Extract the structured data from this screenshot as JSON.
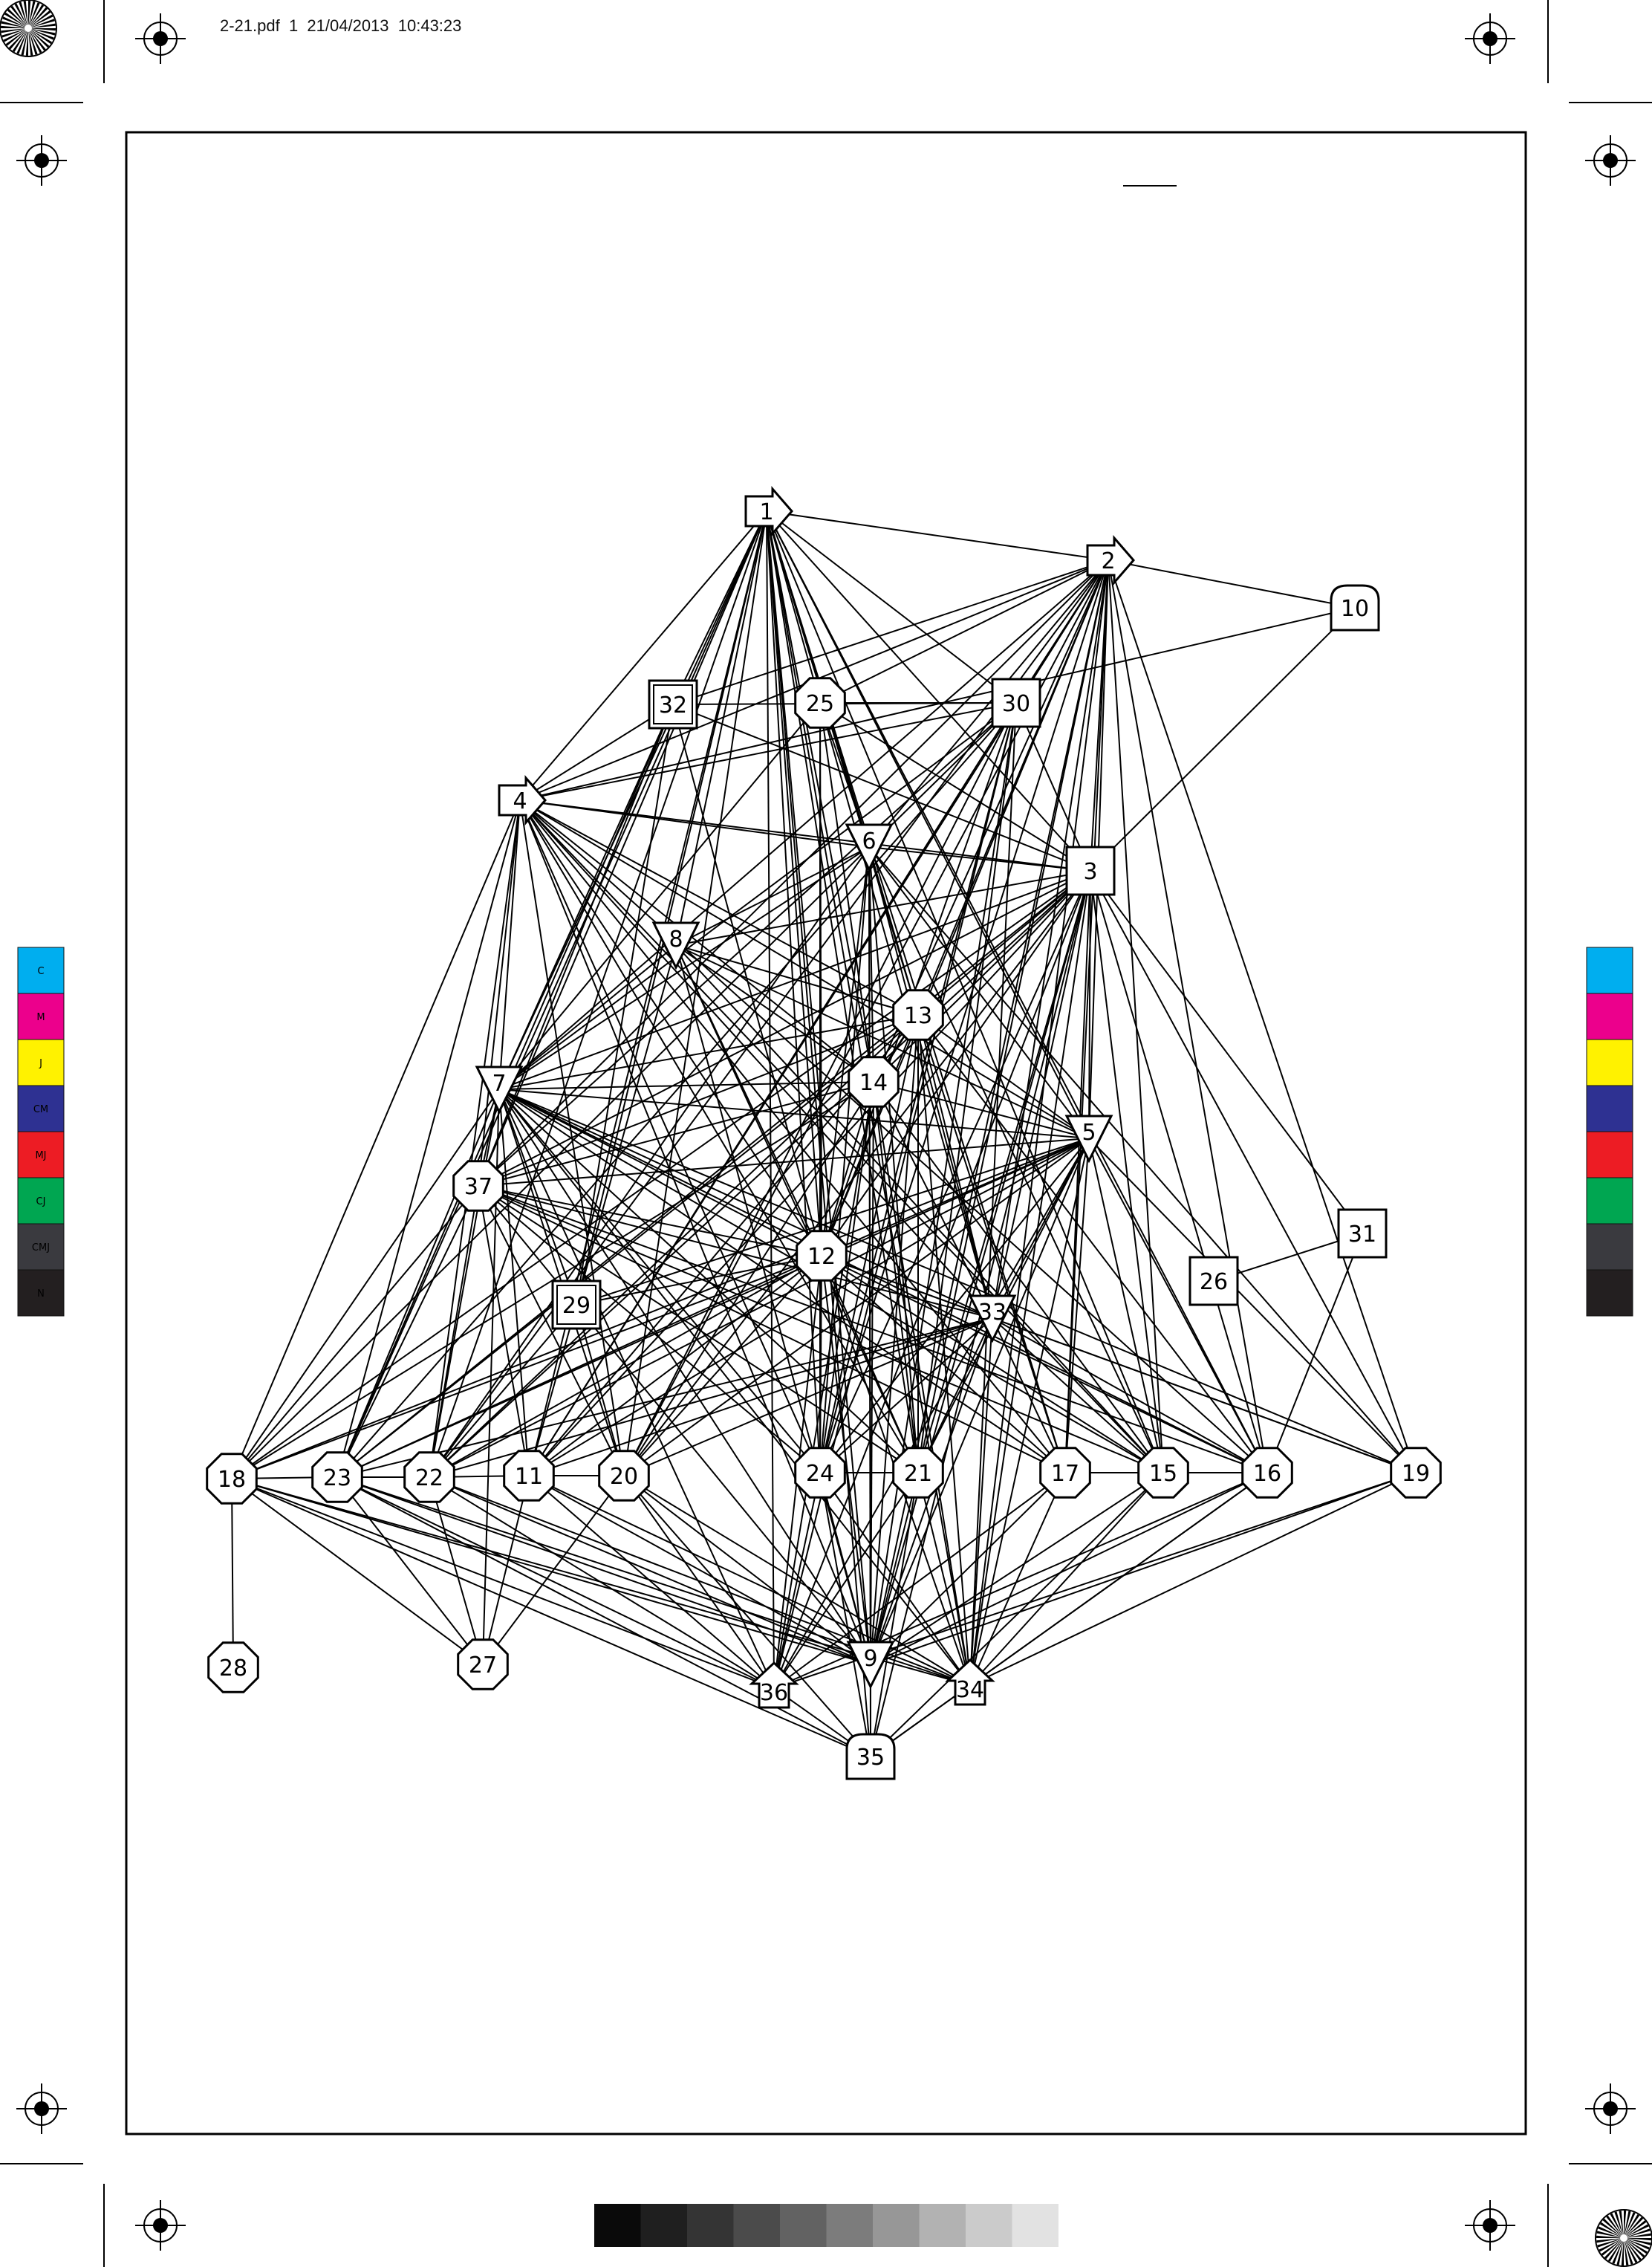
{
  "header": {
    "file_info": "2-21.pdf  1  21/04/2013  10:43:23"
  },
  "color_bar": {
    "patches": [
      {
        "label": "C",
        "color": "#00aeef"
      },
      {
        "label": "M",
        "color": "#ec008c"
      },
      {
        "label": "J",
        "color": "#fff200"
      },
      {
        "label": "CM",
        "color": "#2e3192"
      },
      {
        "label": "MJ",
        "color": "#ed1c24"
      },
      {
        "label": "CJ",
        "color": "#00a651"
      },
      {
        "label": "CMJ",
        "color": "#3a3a3f"
      },
      {
        "label": "N",
        "color": "#231f20"
      }
    ]
  },
  "gray_scale": [
    "#0a0a0a",
    "#1f1f1f",
    "#343434",
    "#4b4b4b",
    "#626262",
    "#7c7c7c",
    "#979797",
    "#b2b2b2",
    "#cbcbcb",
    "#e2e2e2"
  ],
  "graph": {
    "nodes": [
      {
        "id": "1",
        "shape": "arrow-right"
      },
      {
        "id": "2",
        "shape": "arrow-right"
      },
      {
        "id": "3",
        "shape": "square"
      },
      {
        "id": "4",
        "shape": "arrow-right"
      },
      {
        "id": "5",
        "shape": "triangle-down"
      },
      {
        "id": "6",
        "shape": "triangle-down"
      },
      {
        "id": "7",
        "shape": "triangle-down"
      },
      {
        "id": "8",
        "shape": "triangle-down"
      },
      {
        "id": "9",
        "shape": "triangle-down"
      },
      {
        "id": "10",
        "shape": "house"
      },
      {
        "id": "11",
        "shape": "octagon"
      },
      {
        "id": "12",
        "shape": "octagon"
      },
      {
        "id": "13",
        "shape": "octagon"
      },
      {
        "id": "14",
        "shape": "octagon"
      },
      {
        "id": "15",
        "shape": "octagon"
      },
      {
        "id": "16",
        "shape": "octagon"
      },
      {
        "id": "17",
        "shape": "octagon"
      },
      {
        "id": "18",
        "shape": "octagon"
      },
      {
        "id": "19",
        "shape": "octagon"
      },
      {
        "id": "20",
        "shape": "octagon"
      },
      {
        "id": "21",
        "shape": "octagon"
      },
      {
        "id": "22",
        "shape": "octagon"
      },
      {
        "id": "23",
        "shape": "octagon"
      },
      {
        "id": "24",
        "shape": "octagon"
      },
      {
        "id": "25",
        "shape": "octagon"
      },
      {
        "id": "26",
        "shape": "square"
      },
      {
        "id": "27",
        "shape": "octagon"
      },
      {
        "id": "28",
        "shape": "octagon"
      },
      {
        "id": "29",
        "shape": "double-square"
      },
      {
        "id": "30",
        "shape": "square"
      },
      {
        "id": "31",
        "shape": "square"
      },
      {
        "id": "32",
        "shape": "double-square"
      },
      {
        "id": "33",
        "shape": "triangle-down"
      },
      {
        "id": "34",
        "shape": "arrow-up"
      },
      {
        "id": "35",
        "shape": "house"
      },
      {
        "id": "36",
        "shape": "arrow-up"
      },
      {
        "id": "37",
        "shape": "octagon"
      }
    ],
    "edges": [
      [
        "1",
        "2"
      ],
      [
        "1",
        "4"
      ],
      [
        "1",
        "30"
      ],
      [
        "1",
        "3"
      ],
      [
        "1",
        "32"
      ],
      [
        "1",
        "6"
      ],
      [
        "1",
        "8"
      ],
      [
        "1",
        "7"
      ],
      [
        "1",
        "13"
      ],
      [
        "1",
        "14"
      ],
      [
        "1",
        "5"
      ],
      [
        "1",
        "37"
      ],
      [
        "1",
        "12"
      ],
      [
        "1",
        "29"
      ],
      [
        "1",
        "33"
      ],
      [
        "1",
        "11"
      ],
      [
        "1",
        "20"
      ],
      [
        "1",
        "24"
      ],
      [
        "1",
        "21"
      ],
      [
        "1",
        "17"
      ],
      [
        "1",
        "15"
      ],
      [
        "1",
        "16"
      ],
      [
        "1",
        "22"
      ],
      [
        "1",
        "23"
      ],
      [
        "1",
        "9"
      ],
      [
        "1",
        "36"
      ],
      [
        "1",
        "34"
      ],
      [
        "1",
        "35"
      ],
      [
        "2",
        "10"
      ],
      [
        "2",
        "32"
      ],
      [
        "2",
        "25"
      ],
      [
        "2",
        "30"
      ],
      [
        "2",
        "3"
      ],
      [
        "2",
        "4"
      ],
      [
        "2",
        "6"
      ],
      [
        "2",
        "7"
      ],
      [
        "2",
        "13"
      ],
      [
        "2",
        "5"
      ],
      [
        "2",
        "12"
      ],
      [
        "2",
        "33"
      ],
      [
        "2",
        "24"
      ],
      [
        "2",
        "21"
      ],
      [
        "2",
        "17"
      ],
      [
        "2",
        "15"
      ],
      [
        "2",
        "16"
      ],
      [
        "2",
        "19"
      ],
      [
        "2",
        "9"
      ],
      [
        "2",
        "34"
      ],
      [
        "2",
        "20"
      ],
      [
        "2",
        "11"
      ],
      [
        "2",
        "22"
      ],
      [
        "2",
        "37"
      ],
      [
        "2",
        "14"
      ],
      [
        "10",
        "4"
      ],
      [
        "10",
        "3"
      ],
      [
        "32",
        "30"
      ],
      [
        "32",
        "4"
      ],
      [
        "32",
        "3"
      ],
      [
        "32",
        "7"
      ],
      [
        "32",
        "37"
      ],
      [
        "32",
        "23"
      ],
      [
        "32",
        "29"
      ],
      [
        "32",
        "12"
      ],
      [
        "25",
        "30"
      ],
      [
        "25",
        "6"
      ],
      [
        "25",
        "3"
      ],
      [
        "25",
        "12"
      ],
      [
        "25",
        "7"
      ],
      [
        "25",
        "14"
      ],
      [
        "25",
        "24"
      ],
      [
        "30",
        "4"
      ],
      [
        "30",
        "3"
      ],
      [
        "30",
        "6"
      ],
      [
        "30",
        "7"
      ],
      [
        "30",
        "37"
      ],
      [
        "30",
        "12"
      ],
      [
        "30",
        "24"
      ],
      [
        "30",
        "21"
      ],
      [
        "30",
        "11"
      ],
      [
        "30",
        "20"
      ],
      [
        "30",
        "9"
      ],
      [
        "30",
        "36"
      ],
      [
        "30",
        "34"
      ],
      [
        "30",
        "23"
      ],
      [
        "4",
        "6"
      ],
      [
        "4",
        "3"
      ],
      [
        "4",
        "7"
      ],
      [
        "4",
        "37"
      ],
      [
        "4",
        "13"
      ],
      [
        "4",
        "14"
      ],
      [
        "4",
        "5"
      ],
      [
        "4",
        "12"
      ],
      [
        "4",
        "33"
      ],
      [
        "4",
        "18"
      ],
      [
        "4",
        "23"
      ],
      [
        "4",
        "22"
      ],
      [
        "4",
        "24"
      ],
      [
        "4",
        "21"
      ],
      [
        "4",
        "17"
      ],
      [
        "4",
        "15"
      ],
      [
        "4",
        "9"
      ],
      [
        "4",
        "16"
      ],
      [
        "4",
        "20"
      ],
      [
        "6",
        "3"
      ],
      [
        "6",
        "8"
      ],
      [
        "6",
        "7"
      ],
      [
        "6",
        "13"
      ],
      [
        "6",
        "14"
      ],
      [
        "6",
        "5"
      ],
      [
        "6",
        "12"
      ],
      [
        "6",
        "33"
      ],
      [
        "6",
        "24"
      ],
      [
        "6",
        "21"
      ],
      [
        "6",
        "15"
      ],
      [
        "6",
        "9"
      ],
      [
        "6",
        "19"
      ],
      [
        "6",
        "18"
      ],
      [
        "6",
        "22"
      ],
      [
        "6",
        "35"
      ],
      [
        "3",
        "8"
      ],
      [
        "3",
        "7"
      ],
      [
        "3",
        "13"
      ],
      [
        "3",
        "14"
      ],
      [
        "3",
        "5"
      ],
      [
        "3",
        "12"
      ],
      [
        "3",
        "37"
      ],
      [
        "3",
        "33"
      ],
      [
        "3",
        "24"
      ],
      [
        "3",
        "21"
      ],
      [
        "3",
        "17"
      ],
      [
        "3",
        "15"
      ],
      [
        "3",
        "16"
      ],
      [
        "3",
        "19"
      ],
      [
        "3",
        "9"
      ],
      [
        "3",
        "34"
      ],
      [
        "3",
        "36"
      ],
      [
        "3",
        "11"
      ],
      [
        "3",
        "20"
      ],
      [
        "3",
        "22"
      ],
      [
        "3",
        "23"
      ],
      [
        "3",
        "18"
      ],
      [
        "3",
        "35"
      ],
      [
        "8",
        "7"
      ],
      [
        "8",
        "13"
      ],
      [
        "8",
        "14"
      ],
      [
        "8",
        "5"
      ],
      [
        "8",
        "12"
      ],
      [
        "8",
        "29"
      ],
      [
        "8",
        "15"
      ],
      [
        "8",
        "9"
      ],
      [
        "8",
        "21"
      ],
      [
        "13",
        "7"
      ],
      [
        "13",
        "14"
      ],
      [
        "13",
        "5"
      ],
      [
        "13",
        "12"
      ],
      [
        "13",
        "37"
      ],
      [
        "13",
        "33"
      ],
      [
        "13",
        "24"
      ],
      [
        "13",
        "21"
      ],
      [
        "13",
        "17"
      ],
      [
        "13",
        "9"
      ],
      [
        "13",
        "34"
      ],
      [
        "13",
        "22"
      ],
      [
        "13",
        "11"
      ],
      [
        "13",
        "20"
      ],
      [
        "13",
        "23"
      ],
      [
        "13",
        "16"
      ],
      [
        "14",
        "7"
      ],
      [
        "14",
        "5"
      ],
      [
        "14",
        "12"
      ],
      [
        "14",
        "37"
      ],
      [
        "14",
        "33"
      ],
      [
        "14",
        "21"
      ],
      [
        "14",
        "24"
      ],
      [
        "14",
        "9"
      ],
      [
        "14",
        "34"
      ],
      [
        "14",
        "15"
      ],
      [
        "14",
        "18"
      ],
      [
        "14",
        "36"
      ],
      [
        "7",
        "5"
      ],
      [
        "7",
        "12"
      ],
      [
        "7",
        "37"
      ],
      [
        "7",
        "29"
      ],
      [
        "7",
        "33"
      ],
      [
        "7",
        "18"
      ],
      [
        "7",
        "23"
      ],
      [
        "7",
        "22"
      ],
      [
        "7",
        "11"
      ],
      [
        "7",
        "20"
      ],
      [
        "7",
        "24"
      ],
      [
        "7",
        "21"
      ],
      [
        "7",
        "17"
      ],
      [
        "7",
        "15"
      ],
      [
        "7",
        "16"
      ],
      [
        "7",
        "19"
      ],
      [
        "7",
        "9"
      ],
      [
        "7",
        "36"
      ],
      [
        "7",
        "34"
      ],
      [
        "7",
        "27"
      ],
      [
        "5",
        "37"
      ],
      [
        "5",
        "12"
      ],
      [
        "5",
        "29"
      ],
      [
        "5",
        "33"
      ],
      [
        "5",
        "18"
      ],
      [
        "5",
        "23"
      ],
      [
        "5",
        "22"
      ],
      [
        "5",
        "11"
      ],
      [
        "5",
        "20"
      ],
      [
        "5",
        "24"
      ],
      [
        "5",
        "21"
      ],
      [
        "5",
        "17"
      ],
      [
        "5",
        "15"
      ],
      [
        "5",
        "16"
      ],
      [
        "5",
        "19"
      ],
      [
        "5",
        "9"
      ],
      [
        "5",
        "34"
      ],
      [
        "5",
        "36"
      ],
      [
        "37",
        "12"
      ],
      [
        "37",
        "33"
      ],
      [
        "37",
        "23"
      ],
      [
        "37",
        "22"
      ],
      [
        "37",
        "11"
      ],
      [
        "37",
        "20"
      ],
      [
        "37",
        "24"
      ],
      [
        "37",
        "21"
      ],
      [
        "37",
        "17"
      ],
      [
        "37",
        "15"
      ],
      [
        "37",
        "16"
      ],
      [
        "37",
        "9"
      ],
      [
        "37",
        "18"
      ],
      [
        "12",
        "29"
      ],
      [
        "12",
        "33"
      ],
      [
        "12",
        "18"
      ],
      [
        "12",
        "23"
      ],
      [
        "12",
        "22"
      ],
      [
        "12",
        "11"
      ],
      [
        "12",
        "20"
      ],
      [
        "12",
        "24"
      ],
      [
        "12",
        "21"
      ],
      [
        "12",
        "17"
      ],
      [
        "12",
        "15"
      ],
      [
        "12",
        "16"
      ],
      [
        "12",
        "19"
      ],
      [
        "12",
        "9"
      ],
      [
        "12",
        "34"
      ],
      [
        "12",
        "36"
      ],
      [
        "29",
        "11"
      ],
      [
        "29",
        "20"
      ],
      [
        "29",
        "22"
      ],
      [
        "33",
        "22"
      ],
      [
        "33",
        "11"
      ],
      [
        "33",
        "20"
      ],
      [
        "33",
        "24"
      ],
      [
        "33",
        "21"
      ],
      [
        "33",
        "17"
      ],
      [
        "33",
        "15"
      ],
      [
        "33",
        "16"
      ],
      [
        "33",
        "19"
      ],
      [
        "33",
        "9"
      ],
      [
        "33",
        "34"
      ],
      [
        "33",
        "23"
      ],
      [
        "31",
        "26"
      ],
      [
        "31",
        "16"
      ],
      [
        "31",
        "3"
      ],
      [
        "18",
        "23"
      ],
      [
        "18",
        "28"
      ],
      [
        "18",
        "27"
      ],
      [
        "18",
        "36"
      ],
      [
        "18",
        "9"
      ],
      [
        "18",
        "35"
      ],
      [
        "18",
        "34"
      ],
      [
        "23",
        "22"
      ],
      [
        "23",
        "27"
      ],
      [
        "23",
        "36"
      ],
      [
        "23",
        "9"
      ],
      [
        "23",
        "34"
      ],
      [
        "23",
        "35"
      ],
      [
        "22",
        "11"
      ],
      [
        "22",
        "27"
      ],
      [
        "22",
        "36"
      ],
      [
        "22",
        "9"
      ],
      [
        "22",
        "34"
      ],
      [
        "11",
        "20"
      ],
      [
        "11",
        "36"
      ],
      [
        "11",
        "9"
      ],
      [
        "11",
        "34"
      ],
      [
        "11",
        "27"
      ],
      [
        "20",
        "36"
      ],
      [
        "20",
        "9"
      ],
      [
        "20",
        "34"
      ],
      [
        "20",
        "27"
      ],
      [
        "20",
        "35"
      ],
      [
        "24",
        "21"
      ],
      [
        "24",
        "36"
      ],
      [
        "24",
        "9"
      ],
      [
        "24",
        "34"
      ],
      [
        "24",
        "35"
      ],
      [
        "21",
        "36"
      ],
      [
        "21",
        "9"
      ],
      [
        "21",
        "34"
      ],
      [
        "21",
        "35"
      ],
      [
        "17",
        "15"
      ],
      [
        "17",
        "36"
      ],
      [
        "17",
        "9"
      ],
      [
        "17",
        "34"
      ],
      [
        "15",
        "16"
      ],
      [
        "15",
        "9"
      ],
      [
        "15",
        "34"
      ],
      [
        "15",
        "35"
      ],
      [
        "16",
        "9"
      ],
      [
        "16",
        "34"
      ],
      [
        "16",
        "36"
      ],
      [
        "16",
        "35"
      ],
      [
        "19",
        "9"
      ],
      [
        "19",
        "34"
      ],
      [
        "19",
        "36"
      ],
      [
        "9",
        "35"
      ],
      [
        "34",
        "35"
      ],
      [
        "36",
        "35"
      ]
    ]
  }
}
